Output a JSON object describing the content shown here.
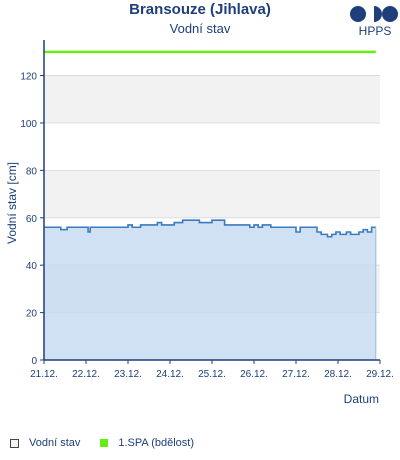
{
  "header": {
    "title": "Bransouze (Jihlava)",
    "subtitle": "Vodní stav",
    "logo_text": "HPPS"
  },
  "legend": {
    "items": [
      {
        "label": "Vodní stav"
      },
      {
        "label": "1.SPA (bdělost)"
      }
    ]
  },
  "colors": {
    "series_line": "#3a7ac0",
    "series_fill": "#c7dcf0",
    "threshold": "#66ee11",
    "band": "#f2f2f2",
    "axis": "#1f3f7a"
  },
  "chart_data": {
    "type": "area",
    "title": "Bransouze (Jihlava)",
    "subtitle": "Vodní stav",
    "xlabel": "Datum",
    "ylabel": "Vodní stav [cm]",
    "x_ticks": [
      "21.12.",
      "22.12.",
      "23.12.",
      "24.12.",
      "25.12.",
      "26.12.",
      "27.12.",
      "28.12.",
      "29.12."
    ],
    "xlim": [
      0,
      8
    ],
    "ylim": [
      0,
      135
    ],
    "y_ticks": [
      0,
      20,
      40,
      60,
      80,
      100,
      120
    ],
    "grid": "alternating horizontal bands",
    "legend_position": "bottom",
    "series": [
      {
        "name": "Vodní stav",
        "x": [
          0,
          0.1,
          0.4,
          0.55,
          0.7,
          1.0,
          1.05,
          1.1,
          1.4,
          1.5,
          1.8,
          2.0,
          2.1,
          2.3,
          2.6,
          2.7,
          2.8,
          3.0,
          3.1,
          3.3,
          3.5,
          3.6,
          3.7,
          4.0,
          4.3,
          4.5,
          4.7,
          4.9,
          5.0,
          5.1,
          5.2,
          5.4,
          5.6,
          5.8,
          6.0,
          6.1,
          6.3,
          6.5,
          6.6,
          6.75,
          6.85,
          6.95,
          7.05,
          7.2,
          7.3,
          7.4,
          7.5,
          7.6,
          7.7,
          7.8,
          7.9
        ],
        "values": [
          56,
          56,
          55,
          56,
          56,
          56,
          54,
          56,
          56,
          56,
          56,
          57,
          56,
          57,
          57,
          58,
          57,
          57,
          58,
          59,
          59,
          59,
          58,
          59,
          57,
          57,
          57,
          56,
          57,
          56,
          57,
          56,
          56,
          56,
          54,
          56,
          56,
          54,
          53,
          52,
          53,
          54,
          53,
          54,
          53,
          53,
          54,
          55,
          54,
          56,
          56
        ]
      },
      {
        "name": "1.SPA (bdělost)",
        "x": [
          0,
          7.9
        ],
        "values": [
          130,
          130
        ]
      }
    ]
  }
}
